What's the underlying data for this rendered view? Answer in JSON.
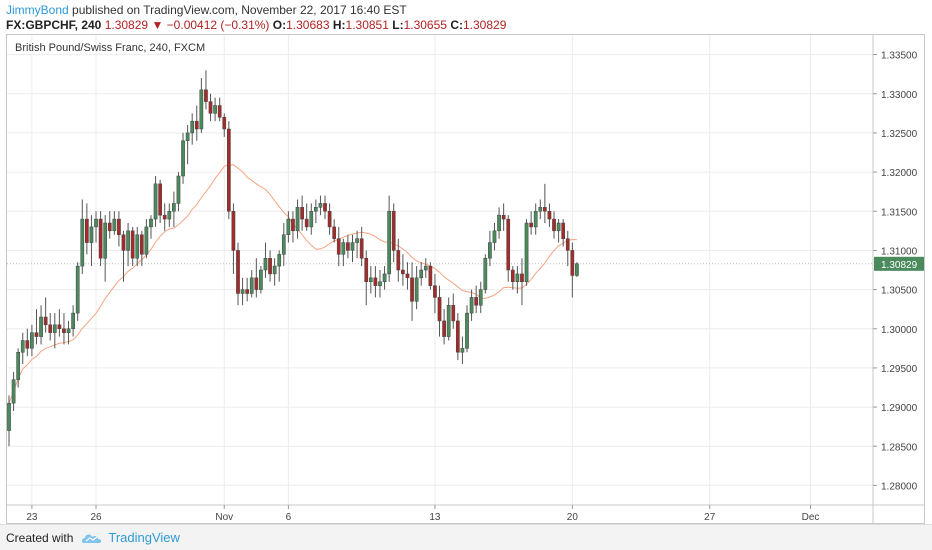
{
  "header": {
    "author": "JimmyBond",
    "published_text": "published on TradingView.com, November 22, 2017 16:40 EST",
    "symbol": "FX:GBPCHF, 240",
    "last": "1.30829",
    "change_arrow": "▼",
    "change": "−0.00412 (−0.31%)",
    "o_label": "O:",
    "o_value": "1.30683",
    "h_label": "H:",
    "h_value": "1.30851",
    "l_label": "L:",
    "l_value": "1.30655",
    "c_label": "C:",
    "c_value": "1.30829"
  },
  "footer": {
    "created_with": "Created with",
    "brand": "TradingView",
    "brand_icon": "tradingview-cloud-icon"
  },
  "chart_data": {
    "type": "candlestick",
    "title": "British Pound/Swiss Franc, 240, FXCM",
    "xlabel": "",
    "ylabel": "",
    "ylim": [
      1.2775,
      1.3375
    ],
    "grid": true,
    "y_ticks": [
      "1.33500",
      "1.33000",
      "1.32500",
      "1.32000",
      "1.31500",
      "1.31000",
      "1.30500",
      "1.30000",
      "1.29500",
      "1.29000",
      "1.28500",
      "1.28000"
    ],
    "x_ticks": [
      {
        "label": "23",
        "index": 5
      },
      {
        "label": "26",
        "index": 19
      },
      {
        "label": "Nov",
        "index": 47
      },
      {
        "label": "6",
        "index": 61
      },
      {
        "label": "13",
        "index": 93
      },
      {
        "label": "20",
        "index": 123
      },
      {
        "label": "27",
        "index": 153
      },
      {
        "label": "Dec",
        "index": 175
      }
    ],
    "last_price_label": "1.30829",
    "last_price": 1.30829,
    "colors": {
      "up": "#4a8a5c",
      "down": "#a52a2a",
      "ma": "#f4a582",
      "grid": "#ececec",
      "last_price_bg": "#4a8a5c"
    },
    "series": [
      {
        "name": "GBPCHF",
        "candles": [
          [
            1.287,
            1.2915,
            1.285,
            1.2905
          ],
          [
            1.2905,
            1.2945,
            1.2895,
            1.2935
          ],
          [
            1.2935,
            1.2975,
            1.2925,
            1.297
          ],
          [
            1.297,
            1.2995,
            1.2955,
            1.2985
          ],
          [
            1.2985,
            1.3,
            1.2965,
            1.2975
          ],
          [
            1.2975,
            1.3005,
            1.2965,
            1.2995
          ],
          [
            1.2995,
            1.3025,
            1.298,
            1.299
          ],
          [
            1.299,
            1.303,
            1.298,
            1.3015
          ],
          [
            1.3015,
            1.304,
            1.2995,
            1.3005
          ],
          [
            1.3005,
            1.302,
            1.2985,
            1.2995
          ],
          [
            1.2995,
            1.302,
            1.2975,
            1.3005
          ],
          [
            1.3005,
            1.3025,
            1.299,
            1.3
          ],
          [
            1.3,
            1.302,
            1.298,
            1.2995
          ],
          [
            1.2995,
            1.301,
            1.298,
            1.3
          ],
          [
            1.3,
            1.303,
            1.299,
            1.302
          ],
          [
            1.302,
            1.3085,
            1.301,
            1.308
          ],
          [
            1.308,
            1.3165,
            1.307,
            1.314
          ],
          [
            1.314,
            1.316,
            1.3095,
            1.311
          ],
          [
            1.311,
            1.3145,
            1.308,
            1.313
          ],
          [
            1.313,
            1.315,
            1.311,
            1.314
          ],
          [
            1.314,
            1.315,
            1.308,
            1.309
          ],
          [
            1.309,
            1.3145,
            1.306,
            1.3135
          ],
          [
            1.3135,
            1.315,
            1.3115,
            1.3125
          ],
          [
            1.3125,
            1.315,
            1.312,
            1.314
          ],
          [
            1.314,
            1.315,
            1.3105,
            1.312
          ],
          [
            1.312,
            1.3125,
            1.306,
            1.31
          ],
          [
            1.31,
            1.3135,
            1.308,
            1.3125
          ],
          [
            1.3125,
            1.313,
            1.308,
            1.309
          ],
          [
            1.309,
            1.313,
            1.308,
            1.312
          ],
          [
            1.312,
            1.3125,
            1.308,
            1.3095
          ],
          [
            1.3095,
            1.314,
            1.309,
            1.313
          ],
          [
            1.313,
            1.3145,
            1.3115,
            1.314
          ],
          [
            1.314,
            1.3195,
            1.313,
            1.3185
          ],
          [
            1.3185,
            1.319,
            1.3135,
            1.3145
          ],
          [
            1.3145,
            1.316,
            1.3125,
            1.314
          ],
          [
            1.314,
            1.316,
            1.313,
            1.315
          ],
          [
            1.315,
            1.3175,
            1.313,
            1.316
          ],
          [
            1.316,
            1.32,
            1.315,
            1.3195
          ],
          [
            1.3195,
            1.325,
            1.3185,
            1.324
          ],
          [
            1.324,
            1.326,
            1.321,
            1.325
          ],
          [
            1.325,
            1.3275,
            1.3235,
            1.3265
          ],
          [
            1.3265,
            1.3285,
            1.324,
            1.3255
          ],
          [
            1.3255,
            1.332,
            1.325,
            1.3305
          ],
          [
            1.3305,
            1.333,
            1.328,
            1.329
          ],
          [
            1.329,
            1.33,
            1.3265,
            1.3275
          ],
          [
            1.3275,
            1.3295,
            1.3265,
            1.3285
          ],
          [
            1.3285,
            1.3295,
            1.3265,
            1.327
          ],
          [
            1.327,
            1.3275,
            1.3245,
            1.3255
          ],
          [
            1.3255,
            1.3265,
            1.314,
            1.315
          ],
          [
            1.315,
            1.316,
            1.307,
            1.31
          ],
          [
            1.31,
            1.311,
            1.303,
            1.3045
          ],
          [
            1.3045,
            1.3065,
            1.303,
            1.305
          ],
          [
            1.305,
            1.3065,
            1.3035,
            1.3045
          ],
          [
            1.3045,
            1.3075,
            1.304,
            1.3065
          ],
          [
            1.3065,
            1.309,
            1.304,
            1.305
          ],
          [
            1.305,
            1.308,
            1.3045,
            1.3075
          ],
          [
            1.3075,
            1.311,
            1.3065,
            1.309
          ],
          [
            1.309,
            1.31,
            1.306,
            1.307
          ],
          [
            1.307,
            1.309,
            1.3055,
            1.308
          ],
          [
            1.308,
            1.31,
            1.306,
            1.3095
          ],
          [
            1.3095,
            1.3135,
            1.308,
            1.312
          ],
          [
            1.312,
            1.315,
            1.311,
            1.314
          ],
          [
            1.314,
            1.315,
            1.311,
            1.3125
          ],
          [
            1.3125,
            1.3165,
            1.3115,
            1.3155
          ],
          [
            1.3155,
            1.317,
            1.3125,
            1.314
          ],
          [
            1.314,
            1.316,
            1.3125,
            1.313
          ],
          [
            1.313,
            1.316,
            1.312,
            1.315
          ],
          [
            1.315,
            1.3165,
            1.3135,
            1.3155
          ],
          [
            1.3155,
            1.317,
            1.3145,
            1.316
          ],
          [
            1.316,
            1.317,
            1.314,
            1.315
          ],
          [
            1.315,
            1.316,
            1.312,
            1.313
          ],
          [
            1.313,
            1.314,
            1.311,
            1.3115
          ],
          [
            1.3115,
            1.313,
            1.308,
            1.3095
          ],
          [
            1.3095,
            1.3115,
            1.308,
            1.311
          ],
          [
            1.311,
            1.312,
            1.309,
            1.31
          ],
          [
            1.31,
            1.312,
            1.3085,
            1.311
          ],
          [
            1.311,
            1.3125,
            1.309,
            1.3115
          ],
          [
            1.3115,
            1.313,
            1.308,
            1.309
          ],
          [
            1.309,
            1.31,
            1.303,
            1.306
          ],
          [
            1.306,
            1.308,
            1.3045,
            1.3065
          ],
          [
            1.3065,
            1.308,
            1.304,
            1.3055
          ],
          [
            1.3055,
            1.3075,
            1.304,
            1.306
          ],
          [
            1.306,
            1.308,
            1.305,
            1.307
          ],
          [
            1.307,
            1.317,
            1.306,
            1.315
          ],
          [
            1.315,
            1.316,
            1.3085,
            1.31
          ],
          [
            1.31,
            1.3115,
            1.306,
            1.3075
          ],
          [
            1.3075,
            1.3095,
            1.3055,
            1.307
          ],
          [
            1.307,
            1.3085,
            1.305,
            1.3065
          ],
          [
            1.3065,
            1.3085,
            1.301,
            1.3035
          ],
          [
            1.3035,
            1.308,
            1.3025,
            1.3065
          ],
          [
            1.3065,
            1.3085,
            1.3055,
            1.3075
          ],
          [
            1.3075,
            1.309,
            1.3065,
            1.308
          ],
          [
            1.308,
            1.3085,
            1.305,
            1.3055
          ],
          [
            1.3055,
            1.307,
            1.302,
            1.304
          ],
          [
            1.304,
            1.3055,
            1.299,
            1.301
          ],
          [
            1.301,
            1.3025,
            1.298,
            1.299
          ],
          [
            1.299,
            1.304,
            1.2985,
            1.303
          ],
          [
            1.303,
            1.3045,
            1.3,
            1.301
          ],
          [
            1.301,
            1.302,
            1.296,
            1.297
          ],
          [
            1.297,
            1.299,
            1.2955,
            1.2975
          ],
          [
            1.2975,
            1.303,
            1.297,
            1.302
          ],
          [
            1.302,
            1.305,
            1.301,
            1.304
          ],
          [
            1.304,
            1.3055,
            1.302,
            1.303
          ],
          [
            1.303,
            1.306,
            1.302,
            1.305
          ],
          [
            1.305,
            1.3095,
            1.3045,
            1.309
          ],
          [
            1.309,
            1.3125,
            1.308,
            1.311
          ],
          [
            1.311,
            1.3135,
            1.31,
            1.3125
          ],
          [
            1.3125,
            1.3155,
            1.3115,
            1.3145
          ],
          [
            1.3145,
            1.316,
            1.3125,
            1.314
          ],
          [
            1.314,
            1.3145,
            1.306,
            1.3075
          ],
          [
            1.3075,
            1.308,
            1.305,
            1.306
          ],
          [
            1.306,
            1.308,
            1.3045,
            1.307
          ],
          [
            1.307,
            1.309,
            1.303,
            1.306
          ],
          [
            1.306,
            1.314,
            1.3055,
            1.3135
          ],
          [
            1.3135,
            1.315,
            1.312,
            1.313
          ],
          [
            1.313,
            1.316,
            1.312,
            1.315
          ],
          [
            1.315,
            1.3165,
            1.314,
            1.3155
          ],
          [
            1.3155,
            1.3185,
            1.3135,
            1.315
          ],
          [
            1.315,
            1.316,
            1.313,
            1.314
          ],
          [
            1.314,
            1.315,
            1.3115,
            1.3125
          ],
          [
            1.3125,
            1.314,
            1.311,
            1.3135
          ],
          [
            1.3135,
            1.314,
            1.3105,
            1.3115
          ],
          [
            1.3115,
            1.3125,
            1.308,
            1.31
          ],
          [
            1.31,
            1.311,
            1.304,
            1.3068
          ],
          [
            1.3068,
            1.3085,
            1.3066,
            1.3083
          ]
        ]
      },
      {
        "name": "MA",
        "values": []
      }
    ]
  }
}
